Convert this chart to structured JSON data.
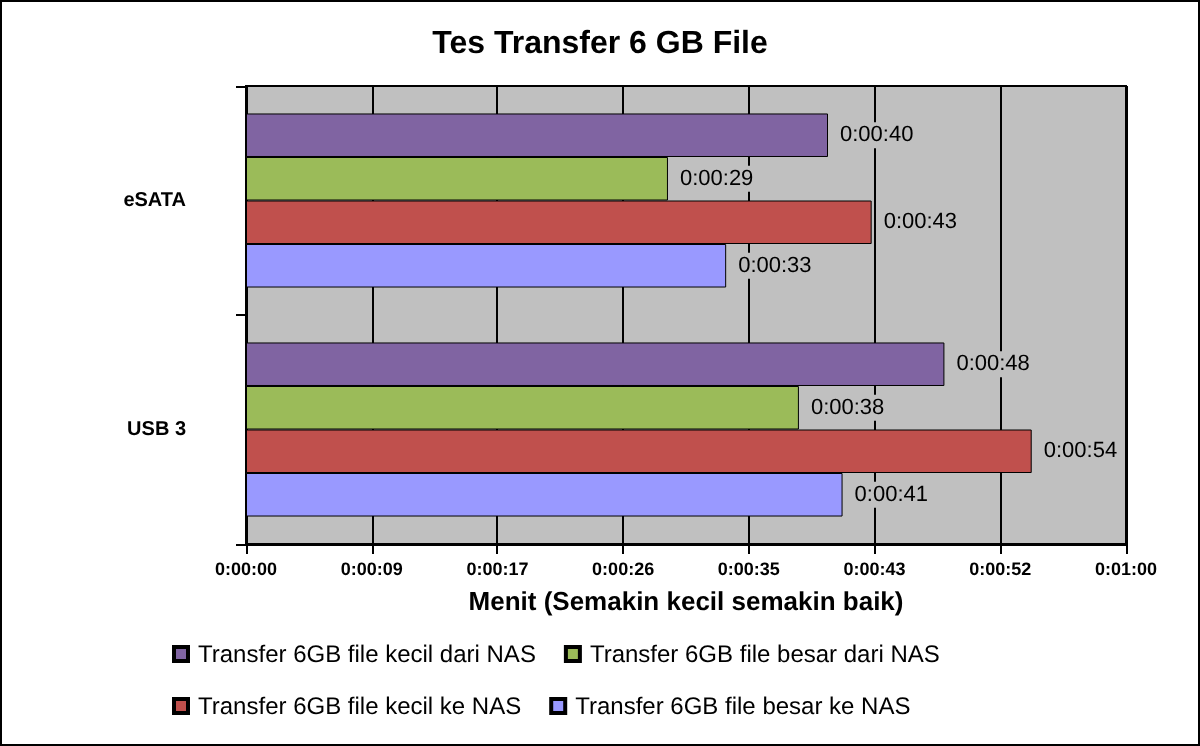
{
  "chart_data": {
    "type": "bar",
    "orientation": "horizontal",
    "title": "Tes Transfer 6 GB File",
    "xlabel": "Menit (Semakin kecil semakin baik)",
    "categories": [
      "eSATA",
      "USB 3"
    ],
    "series": [
      {
        "name": "Transfer 6GB file kecil dari NAS",
        "color": "#8064a2",
        "values": [
          40,
          48
        ],
        "value_labels": [
          "0:00:40",
          "0:00:48"
        ]
      },
      {
        "name": "Transfer 6GB file besar dari NAS",
        "color": "#9bbb59",
        "values": [
          29,
          38
        ],
        "value_labels": [
          "0:00:29",
          "0:00:38"
        ]
      },
      {
        "name": "Transfer 6GB file kecil ke NAS",
        "color": "#c0504d",
        "values": [
          43,
          54
        ],
        "value_labels": [
          "0:00:43",
          "0:00:54"
        ]
      },
      {
        "name": "Transfer 6GB file besar ke NAS",
        "color": "#9999ff",
        "values": [
          33,
          41
        ],
        "value_labels": [
          "0:00:33",
          "0:00:41"
        ]
      }
    ],
    "xlim": [
      0,
      60.48
    ],
    "xticks": [
      {
        "value": 0,
        "label": "0:00:00"
      },
      {
        "value": 8.64,
        "label": "0:00:09"
      },
      {
        "value": 17.28,
        "label": "0:00:17"
      },
      {
        "value": 25.92,
        "label": "0:00:26"
      },
      {
        "value": 34.56,
        "label": "0:00:35"
      },
      {
        "value": 43.2,
        "label": "0:00:43"
      },
      {
        "value": 51.84,
        "label": "0:00:52"
      },
      {
        "value": 60.48,
        "label": "0:01:00"
      }
    ],
    "grid": "x",
    "legend": "bottom"
  }
}
